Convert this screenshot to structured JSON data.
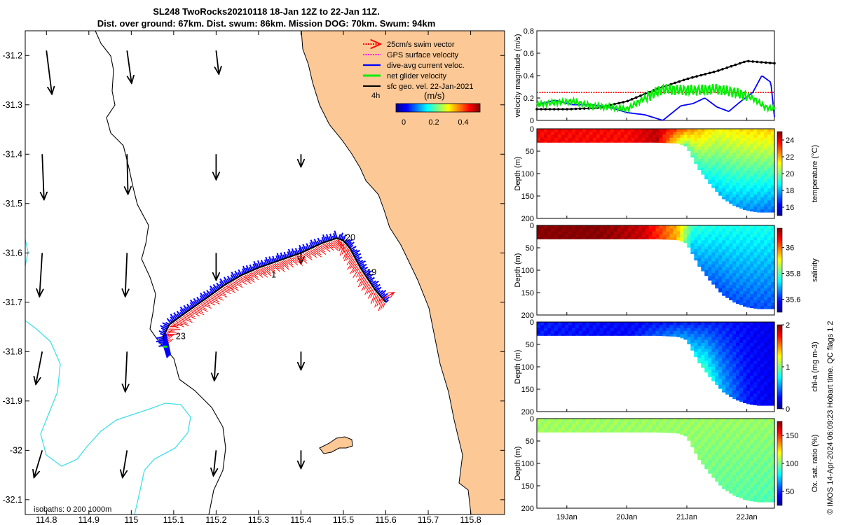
{
  "title_line1": "SL248 TwoRocks20210118 18-Jan 12Z to 22-Jan 11Z.",
  "title_line2": "Dist. over ground: 67km. Dist. swum: 86km. Mission DOG: 70km. Swum: 94km",
  "credit": "© IMOS 14-Apr-2024 06:09:23 Hobart time. QC flags 1  2",
  "colors": {
    "land": "#fbc896",
    "coast": "#000000",
    "isobath": "#40e0e8",
    "swim": "#ff0000",
    "gps": "#ff00ff",
    "dive": "#0000ff",
    "net": "#00ee00",
    "geo": "#000000"
  },
  "chart_data": [
    {
      "type": "map",
      "legend": {
        "items": [
          "25cm/s swim vector",
          "GPS surface velocity",
          "dive-avg current veloc.",
          "net glider velocity",
          "sfc geo. vel. 22-Jan-2021"
        ],
        "timestep": "4h",
        "colorbar_title": "(m/s)",
        "colorbar_ticks": [
          "0",
          "0.2",
          "0.4"
        ]
      },
      "isobath_label": "isobaths: 0   200  1000m",
      "xlim": [
        114.75,
        115.88
      ],
      "ylim": [
        -32.13,
        -31.15
      ],
      "xticks": [
        "114.8",
        "114.9",
        "115",
        "115.1",
        "115.2",
        "115.3",
        "115.4",
        "115.5",
        "115.6",
        "115.7",
        "115.8"
      ],
      "yticks": [
        "-31.2",
        "-31.3",
        "-31.4",
        "-31.5",
        "-31.6",
        "-31.7",
        "-31.8",
        "-31.9",
        "-32",
        "-32.1"
      ],
      "day_labels": [
        {
          "text": "19",
          "lon": 115.555,
          "lat": -31.645
        },
        {
          "text": "20",
          "lon": 115.505,
          "lat": -31.575
        },
        {
          "text": "1",
          "lon": 115.33,
          "lat": -31.65
        },
        {
          "text": "23",
          "lon": 115.105,
          "lat": -31.775
        }
      ],
      "track": [
        [
          115.6,
          -31.7
        ],
        [
          115.575,
          -31.675
        ],
        [
          115.54,
          -31.63
        ],
        [
          115.515,
          -31.59
        ],
        [
          115.5,
          -31.575
        ],
        [
          115.485,
          -31.57
        ],
        [
          115.45,
          -31.58
        ],
        [
          115.4,
          -31.6
        ],
        [
          115.35,
          -31.615
        ],
        [
          115.3,
          -31.63
        ],
        [
          115.26,
          -31.645
        ],
        [
          115.22,
          -31.665
        ],
        [
          115.18,
          -31.69
        ],
        [
          115.13,
          -31.72
        ],
        [
          115.09,
          -31.745
        ],
        [
          115.075,
          -31.77
        ],
        [
          115.08,
          -31.79
        ]
      ],
      "glider_end": [
        115.08,
        -31.79
      ],
      "geo_vectors": [
        {
          "lon": 114.8,
          "lat": -31.19,
          "u": 0.03,
          "v": -0.24
        },
        {
          "lon": 114.99,
          "lat": -31.19,
          "u": 0.025,
          "v": -0.18
        },
        {
          "lon": 115.2,
          "lat": -31.19,
          "u": 0.015,
          "v": -0.13
        },
        {
          "lon": 114.79,
          "lat": -31.4,
          "u": 0.01,
          "v": -0.25
        },
        {
          "lon": 114.99,
          "lat": -31.4,
          "u": 0.005,
          "v": -0.22
        },
        {
          "lon": 115.2,
          "lat": -31.4,
          "u": 0.0,
          "v": -0.14
        },
        {
          "lon": 115.4,
          "lat": -31.4,
          "u": 0.0,
          "v": -0.07
        },
        {
          "lon": 114.79,
          "lat": -31.6,
          "u": -0.015,
          "v": -0.24
        },
        {
          "lon": 114.99,
          "lat": -31.6,
          "u": -0.01,
          "v": -0.24
        },
        {
          "lon": 115.2,
          "lat": -31.6,
          "u": 0.0,
          "v": -0.15
        },
        {
          "lon": 115.4,
          "lat": -31.6,
          "u": 0.0,
          "v": -0.06
        },
        {
          "lon": 114.79,
          "lat": -31.8,
          "u": -0.035,
          "v": -0.18
        },
        {
          "lon": 114.99,
          "lat": -31.8,
          "u": -0.01,
          "v": -0.22
        },
        {
          "lon": 115.2,
          "lat": -31.8,
          "u": -0.01,
          "v": -0.16
        },
        {
          "lon": 115.4,
          "lat": -31.8,
          "u": 0.0,
          "v": -0.1
        },
        {
          "lon": 114.79,
          "lat": -32.0,
          "u": -0.045,
          "v": -0.15
        },
        {
          "lon": 114.99,
          "lat": -32.0,
          "u": -0.025,
          "v": -0.15
        },
        {
          "lon": 115.2,
          "lat": -32.0,
          "u": -0.015,
          "v": -0.14
        },
        {
          "lon": 115.4,
          "lat": -32.0,
          "u": 0.0,
          "v": -0.1
        }
      ]
    },
    {
      "type": "line",
      "ylabel": "velocity magnitude (m/s)",
      "ylim": [
        0,
        0.8
      ],
      "yticks": [
        "0",
        "0.2",
        "0.4",
        "0.6",
        "0.8"
      ],
      "xlim": [
        18.5,
        22.46
      ],
      "series": [
        {
          "color": "#ff0000",
          "x": [
            18.5,
            22.46
          ],
          "y": [
            0.25,
            0.25
          ]
        },
        {
          "color": "#000000",
          "x": [
            18.5,
            19.0,
            19.5,
            20.0,
            20.5,
            21.0,
            21.5,
            22.0,
            22.46
          ],
          "y": [
            0.1,
            0.1,
            0.11,
            0.17,
            0.28,
            0.37,
            0.44,
            0.53,
            0.51
          ]
        },
        {
          "color": "#0000ff",
          "x": [
            18.5,
            18.8,
            19.1,
            19.4,
            19.7,
            20.0,
            20.3,
            20.6,
            20.9,
            21.1,
            21.3,
            21.5,
            21.7,
            21.9,
            22.1,
            22.25,
            22.4,
            22.46
          ],
          "y": [
            0.14,
            0.18,
            0.14,
            0.14,
            0.12,
            0.07,
            0.05,
            0.0,
            0.13,
            0.15,
            0.2,
            0.12,
            0.08,
            0.17,
            0.25,
            0.4,
            0.34,
            0.03
          ]
        },
        {
          "color": "#00ee00",
          "x": [
            18.5,
            18.8,
            19.1,
            19.4,
            19.7,
            20.0,
            20.3,
            20.6,
            20.9,
            21.2,
            21.5,
            21.8,
            22.1,
            22.3,
            22.46
          ],
          "y": [
            0.14,
            0.16,
            0.17,
            0.13,
            0.12,
            0.1,
            0.2,
            0.28,
            0.27,
            0.27,
            0.28,
            0.25,
            0.2,
            0.12,
            0.1
          ]
        }
      ]
    },
    {
      "type": "heatmap",
      "variable": "temperature",
      "colorbar_label": "temperature (°C)",
      "ylabel": "Depth (m)",
      "ylim": [
        0,
        200
      ],
      "yticks": [
        "0",
        "50",
        "100",
        "150",
        "200"
      ],
      "clim": [
        15,
        25
      ],
      "colorbar_ticks": [
        16,
        18,
        20,
        22,
        24
      ],
      "bottom_depth": [
        [
          18.5,
          30
        ],
        [
          19.0,
          30
        ],
        [
          19.5,
          30
        ],
        [
          20.0,
          30
        ],
        [
          20.5,
          30
        ],
        [
          20.85,
          32
        ],
        [
          21.0,
          40
        ],
        [
          21.2,
          90
        ],
        [
          21.4,
          125
        ],
        [
          21.6,
          155
        ],
        [
          21.8,
          172
        ],
        [
          22.0,
          182
        ],
        [
          22.2,
          186
        ],
        [
          22.4,
          186
        ]
      ],
      "surface_profile": [
        [
          18.5,
          23.8
        ],
        [
          20.0,
          23.7
        ],
        [
          20.5,
          24.4
        ],
        [
          21.0,
          22.6
        ],
        [
          21.5,
          21.2
        ],
        [
          22.0,
          21.6
        ],
        [
          22.46,
          21.8
        ]
      ],
      "deep_profile": [
        [
          18.5,
          23.8
        ],
        [
          20.0,
          23.7
        ],
        [
          20.5,
          24.4
        ],
        [
          21.0,
          19.5
        ],
        [
          21.5,
          18.2
        ],
        [
          22.0,
          17.6
        ],
        [
          22.46,
          17.2
        ]
      ]
    },
    {
      "type": "heatmap",
      "variable": "salinity",
      "colorbar_label": "salinity",
      "ylabel": "Depth (m)",
      "ylim": [
        0,
        200
      ],
      "yticks": [
        "0",
        "50",
        "100",
        "150",
        "200"
      ],
      "clim": [
        35.5,
        36.15
      ],
      "colorbar_ticks": [
        35.6,
        35.8,
        36
      ],
      "bottom_depth": [
        [
          18.5,
          30
        ],
        [
          19.0,
          30
        ],
        [
          19.5,
          30
        ],
        [
          20.0,
          30
        ],
        [
          20.5,
          30
        ],
        [
          20.85,
          32
        ],
        [
          21.0,
          40
        ],
        [
          21.2,
          90
        ],
        [
          21.4,
          125
        ],
        [
          21.6,
          155
        ],
        [
          21.8,
          172
        ],
        [
          22.0,
          182
        ],
        [
          22.2,
          186
        ],
        [
          22.4,
          186
        ]
      ],
      "surface_profile": [
        [
          18.5,
          36.15
        ],
        [
          19.5,
          36.15
        ],
        [
          20.3,
          36.1
        ],
        [
          20.6,
          36.02
        ],
        [
          20.85,
          35.95
        ],
        [
          21.1,
          35.78
        ],
        [
          21.5,
          35.76
        ],
        [
          22.0,
          35.76
        ],
        [
          22.46,
          35.76
        ]
      ],
      "deep_profile": [
        [
          18.5,
          36.15
        ],
        [
          19.5,
          36.15
        ],
        [
          20.3,
          36.1
        ],
        [
          20.6,
          36.02
        ],
        [
          20.85,
          35.95
        ],
        [
          21.1,
          35.68
        ],
        [
          21.5,
          35.63
        ],
        [
          22.0,
          35.63
        ],
        [
          22.46,
          35.63
        ]
      ]
    },
    {
      "type": "heatmap",
      "variable": "chl-a",
      "colorbar_label": "chl-a (mg m-3)",
      "ylabel": "Depth (m)",
      "ylim": [
        0,
        200
      ],
      "yticks": [
        "0",
        "50",
        "100",
        "150",
        "200"
      ],
      "clim": [
        0,
        2
      ],
      "colorbar_ticks": [
        0,
        1,
        2
      ],
      "bottom_depth": [
        [
          18.5,
          30
        ],
        [
          19.0,
          30
        ],
        [
          19.5,
          30
        ],
        [
          20.0,
          30
        ],
        [
          20.5,
          30
        ],
        [
          20.85,
          32
        ],
        [
          21.0,
          40
        ],
        [
          21.2,
          90
        ],
        [
          21.4,
          125
        ],
        [
          21.6,
          155
        ],
        [
          21.8,
          172
        ],
        [
          22.0,
          182
        ],
        [
          22.2,
          186
        ],
        [
          22.4,
          186
        ]
      ],
      "surface_profile": [
        [
          18.5,
          0.3
        ],
        [
          20.0,
          0.25
        ],
        [
          21.0,
          0.3
        ],
        [
          21.5,
          0.3
        ],
        [
          22.46,
          0.2
        ]
      ],
      "deep_profile": [
        [
          18.5,
          0.3
        ],
        [
          20.0,
          0.25
        ],
        [
          21.0,
          0.6
        ],
        [
          21.3,
          0.9
        ],
        [
          21.6,
          0.6
        ],
        [
          22.0,
          0.3
        ],
        [
          22.46,
          0.2
        ]
      ]
    },
    {
      "type": "heatmap",
      "variable": "oxygen saturation",
      "colorbar_label": "Ox. sat. ratio (%)",
      "ylabel": "Depth (m)",
      "ylim": [
        0,
        200
      ],
      "yticks": [
        "0",
        "50",
        "100",
        "150",
        "200"
      ],
      "clim": [
        25,
        175
      ],
      "colorbar_ticks": [
        50,
        100,
        150
      ],
      "xticks": [
        "19Jan",
        "20Jan",
        "21Jan",
        "22Jan"
      ],
      "bottom_depth": [
        [
          18.5,
          30
        ],
        [
          19.0,
          30
        ],
        [
          19.5,
          30
        ],
        [
          20.0,
          30
        ],
        [
          20.5,
          30
        ],
        [
          20.85,
          32
        ],
        [
          21.0,
          40
        ],
        [
          21.2,
          90
        ],
        [
          21.4,
          125
        ],
        [
          21.6,
          155
        ],
        [
          21.8,
          172
        ],
        [
          22.0,
          182
        ],
        [
          22.2,
          186
        ],
        [
          22.4,
          186
        ]
      ],
      "surface_profile": [
        [
          18.5,
          105
        ],
        [
          22.46,
          104
        ]
      ],
      "deep_profile": [
        [
          18.5,
          105
        ],
        [
          21.0,
          103
        ],
        [
          21.5,
          97
        ],
        [
          22.0,
          94
        ],
        [
          22.46,
          92
        ]
      ]
    }
  ]
}
